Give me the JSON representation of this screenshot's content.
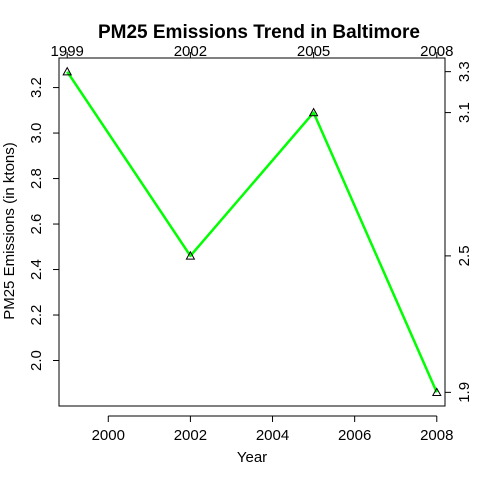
{
  "chart_data": {
    "type": "line",
    "title": "PM25 Emissions Trend in Baltimore",
    "xlabel": "Year",
    "ylabel": "PM25 Emissions (in ktons)",
    "x": [
      1999,
      2002,
      2005,
      2008
    ],
    "series": [
      {
        "values": [
          3.27,
          2.46,
          3.09,
          1.86
        ],
        "color": "#00ff00"
      }
    ],
    "xlim": [
      1998.8,
      2008.2
    ],
    "ylim": [
      1.8,
      3.33
    ],
    "x_ticks_bottom": [
      2000,
      2002,
      2004,
      2006,
      2008
    ],
    "x_tick_labels_bottom": [
      "2000",
      "2002",
      "2004",
      "2006",
      "2008"
    ],
    "x_ticks_top": [
      1999,
      2002,
      2005,
      2008
    ],
    "x_tick_labels_top": [
      "1999",
      "2002",
      "2005",
      "2008"
    ],
    "y_ticks_left": [
      2.0,
      2.2,
      2.4,
      2.6,
      2.8,
      3.0,
      3.2
    ],
    "y_tick_labels_left": [
      "2.0",
      "2.2",
      "2.4",
      "2.6",
      "2.8",
      "3.0",
      "3.2"
    ],
    "y_ticks_right": [
      1.86,
      2.46,
      3.09,
      3.27
    ],
    "y_tick_labels_right": [
      "1.9",
      "2.5",
      "3.1",
      "3.3"
    ],
    "marker": "triangle",
    "grid": false,
    "legend": "none"
  }
}
